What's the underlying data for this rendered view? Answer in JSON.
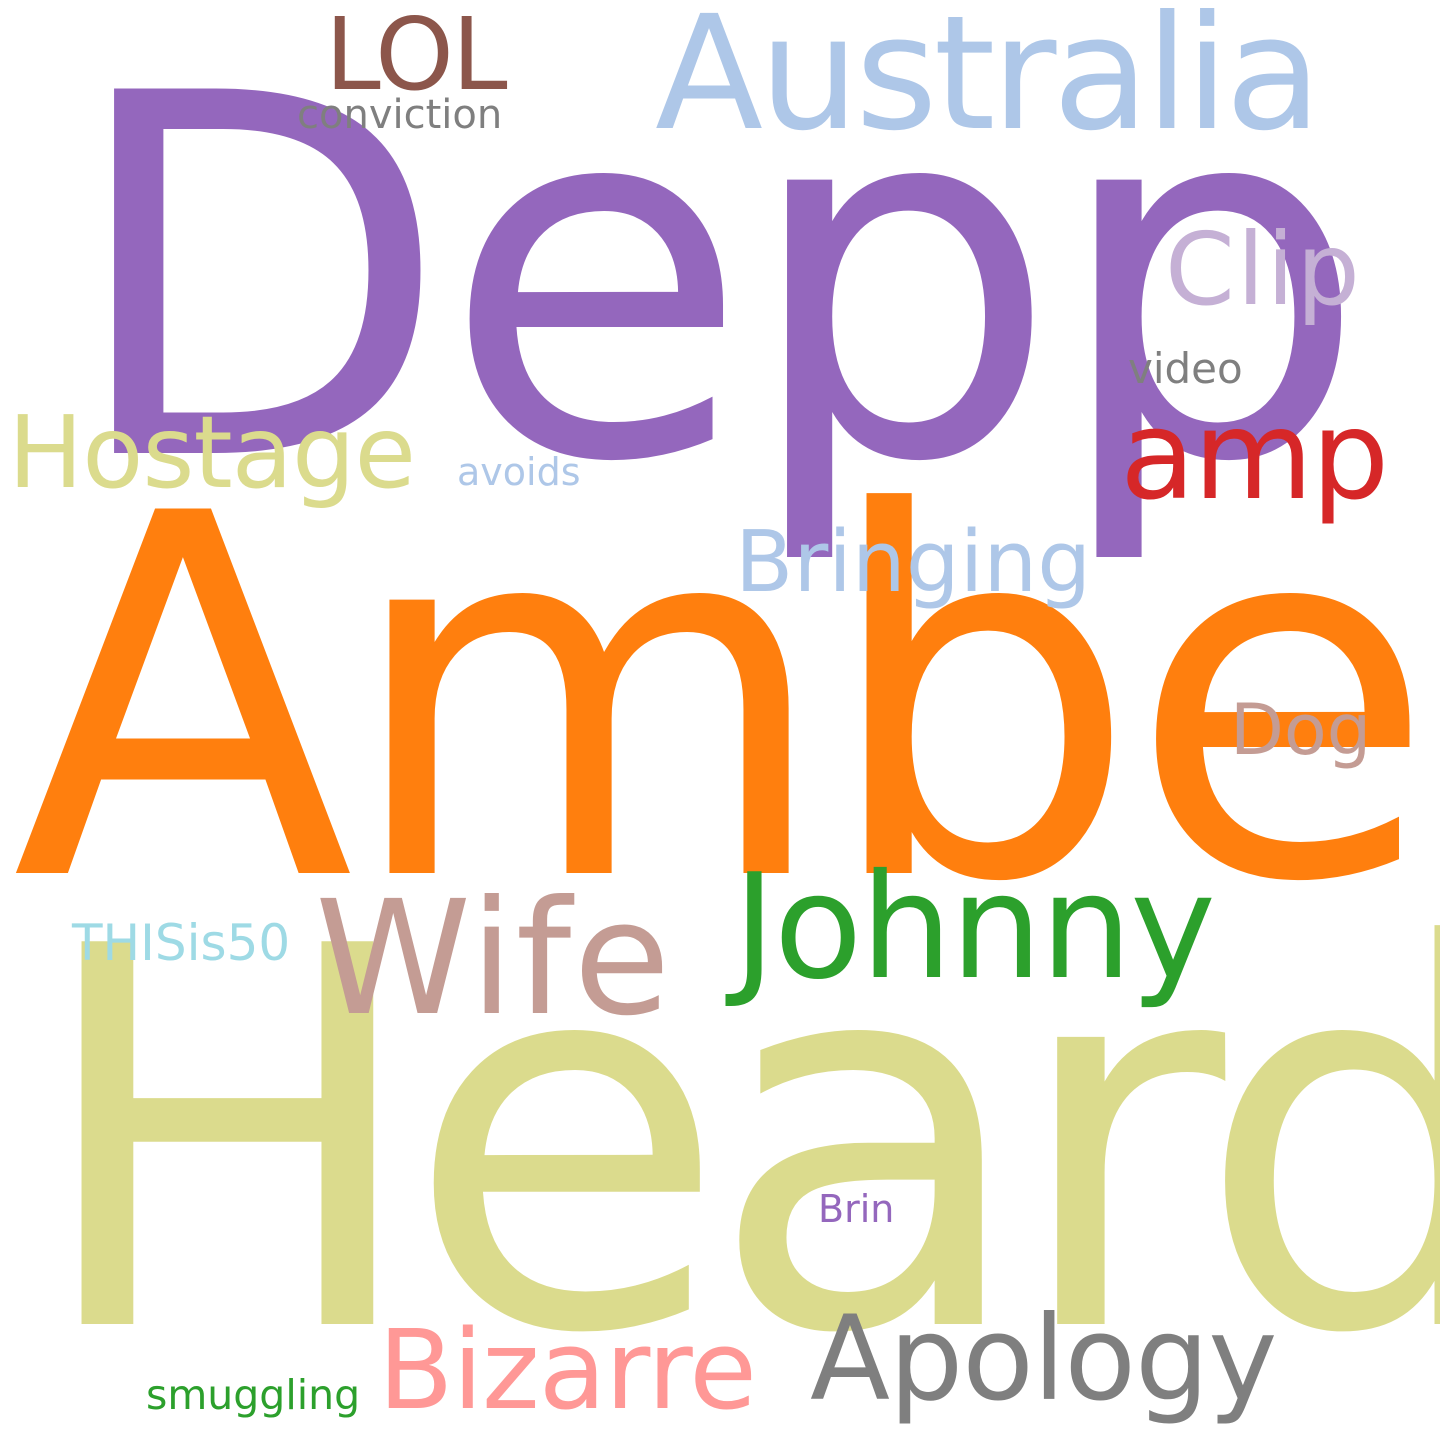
{
  "words": [
    {
      "id": "depp",
      "text": "Depp",
      "color": "#9467bd"
    },
    {
      "id": "amber",
      "text": "Amber",
      "color": "#ff7f0e"
    },
    {
      "id": "heard",
      "text": "Heard",
      "color": "#dbdb8d"
    },
    {
      "id": "australia",
      "text": "Australia",
      "color": "#aec7e8"
    },
    {
      "id": "lol",
      "text": "LOL",
      "color": "#8c564b"
    },
    {
      "id": "conviction",
      "text": "conviction",
      "color": "#7f7f7f"
    },
    {
      "id": "clip",
      "text": "Clip",
      "color": "#c5b0d5"
    },
    {
      "id": "video",
      "text": "video",
      "color": "#7f7f7f"
    },
    {
      "id": "amp",
      "text": "amp",
      "color": "#d62728"
    },
    {
      "id": "hostage",
      "text": "Hostage",
      "color": "#dbdb8d"
    },
    {
      "id": "avoids",
      "text": "avoids",
      "color": "#aec7e8"
    },
    {
      "id": "bringing",
      "text": "Bringing",
      "color": "#aec7e8"
    },
    {
      "id": "dog",
      "text": "Dog",
      "color": "#c49c94"
    },
    {
      "id": "johnny",
      "text": "Johnny",
      "color": "#2ca02c"
    },
    {
      "id": "wife",
      "text": "Wife",
      "color": "#c49c94"
    },
    {
      "id": "thisis50",
      "text": "THISis50",
      "color": "#9edae5"
    },
    {
      "id": "brin",
      "text": "Brin",
      "color": "#9467bd"
    },
    {
      "id": "apology",
      "text": "Apology",
      "color": "#7f7f7f"
    },
    {
      "id": "bizarre",
      "text": "Bizarre",
      "color": "#ff9896"
    },
    {
      "id": "smuggling",
      "text": "smuggling",
      "color": "#2ca02c"
    }
  ]
}
